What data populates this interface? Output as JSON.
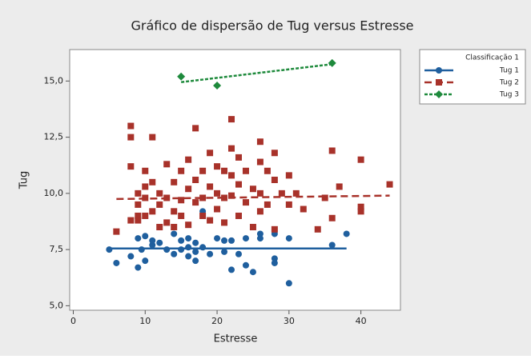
{
  "chart_data": {
    "type": "scatter",
    "title": "Gráfico de dispersão de Tug versus Estresse",
    "x_label": "Estresse",
    "y_label": "Tug",
    "legend_title": "Classificação 1",
    "legend_position": "right",
    "xlim": [
      -0.5,
      45.5
    ],
    "ylim": [
      4.8,
      16.4
    ],
    "xticks": [
      0,
      10,
      20,
      30,
      40
    ],
    "yticks": [
      {
        "value": 5,
        "label": "5,0"
      },
      {
        "value": 7.5,
        "label": "7,5"
      },
      {
        "value": 10,
        "label": "10,0"
      },
      {
        "value": 12.5,
        "label": "12,5"
      },
      {
        "value": 15,
        "label": "15,0"
      }
    ],
    "series": [
      {
        "name": "Tug 1",
        "color": "#1f5f9e",
        "marker": "circle",
        "line_style": "solid",
        "x": [
          5,
          6,
          8,
          9,
          9,
          9.5,
          10,
          10,
          11,
          11,
          12,
          13,
          14,
          14,
          15,
          15,
          16,
          16,
          16,
          17,
          17,
          17,
          18,
          18,
          19,
          20,
          21,
          21,
          22,
          22,
          23,
          24,
          24,
          25,
          26,
          26,
          28,
          28,
          28,
          30,
          30,
          36,
          38
        ],
        "values": [
          7.5,
          6.9,
          7.2,
          8.0,
          6.7,
          7.5,
          8.1,
          7.0,
          7.7,
          7.9,
          7.8,
          7.5,
          8.2,
          7.3,
          7.5,
          7.9,
          8.0,
          7.6,
          7.2,
          7.4,
          7.0,
          7.8,
          7.6,
          9.2,
          7.3,
          8.0,
          7.9,
          7.4,
          6.6,
          7.9,
          7.3,
          8.0,
          6.8,
          6.5,
          8.0,
          8.2,
          6.9,
          8.2,
          7.1,
          8.0,
          6.0,
          7.7,
          8.2
        ],
        "fit_x": [
          5,
          38
        ],
        "fit_values": [
          7.55,
          7.55
        ]
      },
      {
        "name": "Tug 2",
        "color": "#a8322a",
        "marker": "square",
        "line_style": "dashed",
        "x": [
          6,
          8,
          8,
          8,
          8,
          9,
          9,
          9,
          9,
          10,
          10,
          10,
          10,
          11,
          11,
          11,
          12,
          12,
          12,
          13,
          13,
          13,
          14,
          14,
          14,
          15,
          15,
          15,
          16,
          16,
          16,
          17,
          17,
          17,
          18,
          18,
          18,
          19,
          19,
          19,
          20,
          20,
          20,
          21,
          21,
          21,
          22,
          22,
          22,
          22,
          23,
          23,
          23,
          24,
          24,
          25,
          25,
          26,
          26,
          26,
          26,
          27,
          27,
          28,
          28,
          28,
          29,
          30,
          30,
          31,
          32,
          34,
          35,
          36,
          36,
          37,
          40,
          40,
          40,
          44
        ],
        "values": [
          8.3,
          13.0,
          12.5,
          11.2,
          8.8,
          10.0,
          9.5,
          9.0,
          8.8,
          10.3,
          9.8,
          9.0,
          11.0,
          12.5,
          10.5,
          9.2,
          10.0,
          9.5,
          8.5,
          11.3,
          9.8,
          8.7,
          10.5,
          9.2,
          8.5,
          11.0,
          9.7,
          9.0,
          11.5,
          10.2,
          8.6,
          12.9,
          10.6,
          9.6,
          11.0,
          9.8,
          9.0,
          11.8,
          10.3,
          8.8,
          11.2,
          10.0,
          9.3,
          11.0,
          9.8,
          8.7,
          13.3,
          12.0,
          10.8,
          9.9,
          11.6,
          10.4,
          9.0,
          11.0,
          9.6,
          10.2,
          8.5,
          12.3,
          11.4,
          10.0,
          9.2,
          11.0,
          9.5,
          11.8,
          10.6,
          8.4,
          10.0,
          10.8,
          9.5,
          10.0,
          9.3,
          8.4,
          9.8,
          11.9,
          8.9,
          10.3,
          11.5,
          9.4,
          9.2,
          10.4
        ],
        "fit_x": [
          6,
          44
        ],
        "fit_values": [
          9.75,
          9.9
        ]
      },
      {
        "name": "Tug 3",
        "color": "#1e8a3c",
        "marker": "diamond",
        "line_style": "dotted",
        "x": [
          15,
          20,
          36
        ],
        "values": [
          15.2,
          14.8,
          15.8
        ],
        "fit_x": [
          15,
          36
        ],
        "fit_values": [
          14.95,
          15.75
        ]
      }
    ]
  }
}
